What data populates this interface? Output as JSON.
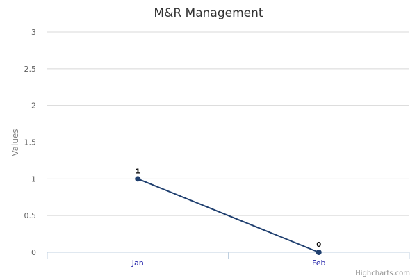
{
  "chart_data": {
    "type": "line",
    "title": "M&R Management",
    "ylabel": "Values",
    "categories": [
      "Jan",
      "Feb"
    ],
    "series": [
      {
        "values": [
          1,
          0
        ],
        "color": "#1f3f6f"
      }
    ],
    "ylim": [
      0,
      3
    ],
    "yticks": [
      "0",
      "0.5",
      "1",
      "1.5",
      "2",
      "2.5",
      "3"
    ],
    "data_labels": [
      "1",
      "0"
    ],
    "grid": true,
    "legend": "none",
    "credits": "Highcharts.com"
  }
}
